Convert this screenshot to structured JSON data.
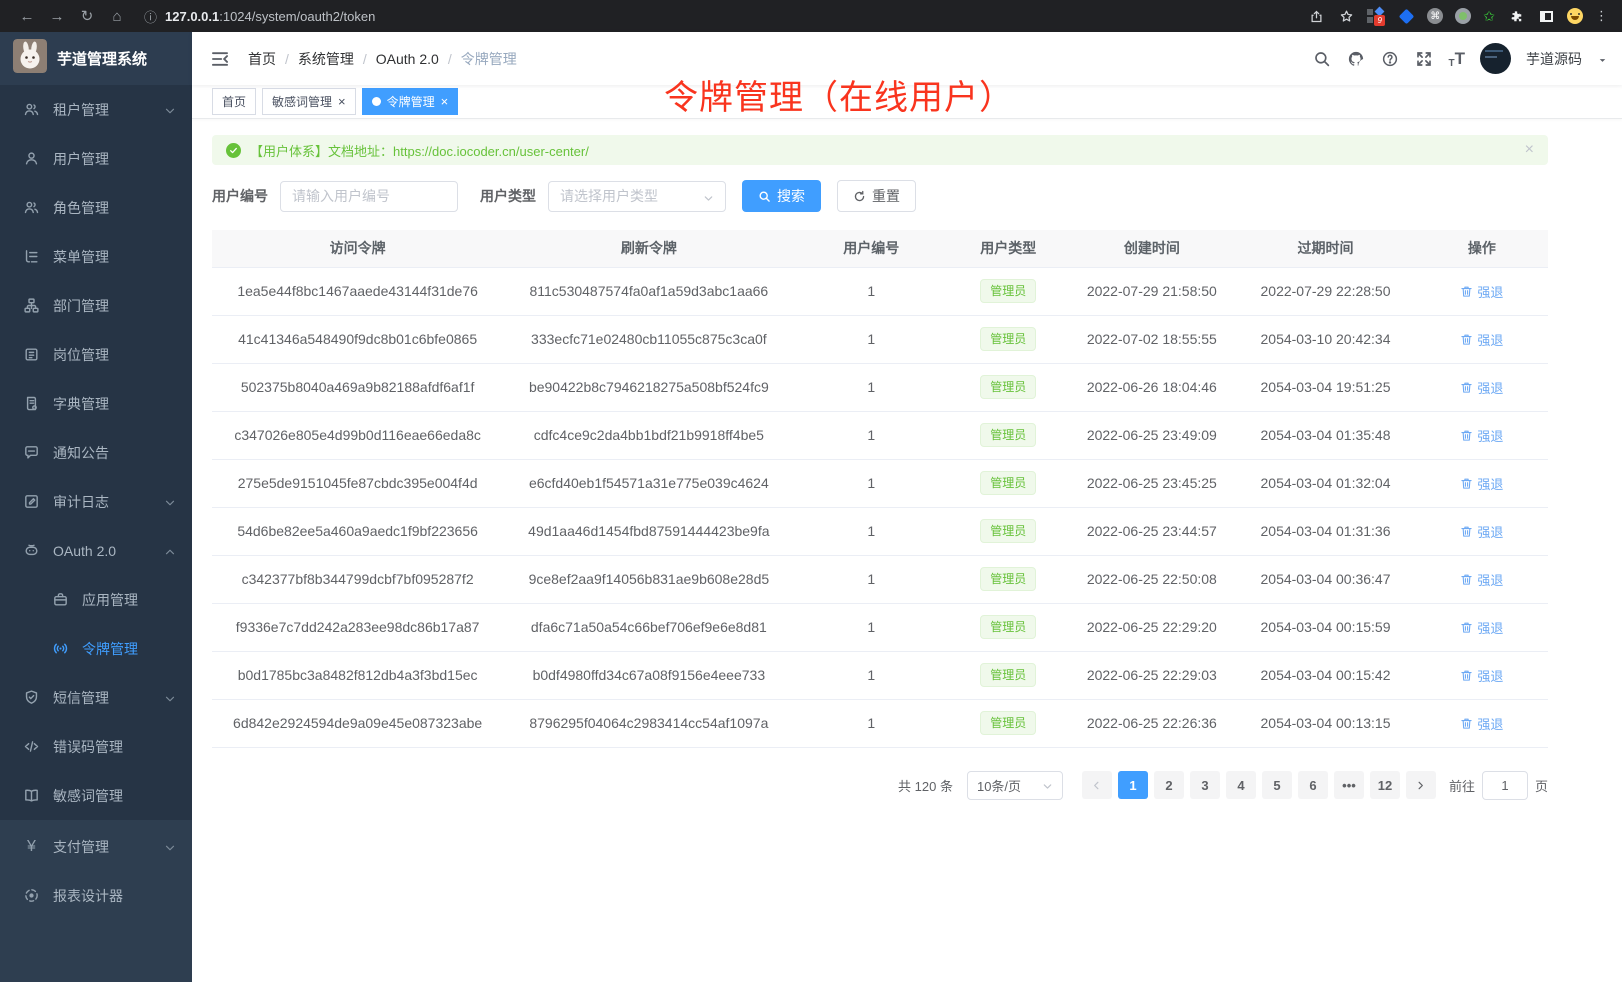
{
  "colors": {
    "primary": "#409eff",
    "success": "#67c23a",
    "annotation_red": "#f9341e",
    "action_link": "#6da9f4"
  },
  "browser": {
    "url_host": "127.0.0.1",
    "url_rest": ":1024/system/oauth2/token",
    "extension_badge": "9"
  },
  "sidebar": {
    "logo_title": "芋道管理系统",
    "menu": [
      {
        "icon": "tenant-icon",
        "label": "租户管理",
        "chevron": "down"
      },
      {
        "icon": "user-icon",
        "label": "用户管理"
      },
      {
        "icon": "role-icon",
        "label": "角色管理"
      },
      {
        "icon": "menu-icon",
        "label": "菜单管理"
      },
      {
        "icon": "dept-icon",
        "label": "部门管理"
      },
      {
        "icon": "post-icon",
        "label": "岗位管理"
      },
      {
        "icon": "dict-icon",
        "label": "字典管理"
      },
      {
        "icon": "notice-icon",
        "label": "通知公告"
      },
      {
        "icon": "audit-icon",
        "label": "审计日志",
        "chevron": "down"
      },
      {
        "icon": "oauth-icon",
        "label": "OAuth 2.0",
        "chevron": "up"
      },
      {
        "icon": "app-icon",
        "label": "应用管理",
        "indent": true
      },
      {
        "icon": "token-icon",
        "label": "令牌管理",
        "indent": true,
        "active": true
      },
      {
        "icon": "sms-icon",
        "label": "短信管理",
        "chevron": "down"
      },
      {
        "icon": "errcode-icon",
        "label": "错误码管理"
      },
      {
        "icon": "sensitive-icon",
        "label": "敏感词管理"
      }
    ],
    "bottom_menu": [
      {
        "icon": "pay-icon",
        "label": "支付管理",
        "chevron": "down"
      },
      {
        "icon": "report-icon",
        "label": "报表设计器"
      }
    ]
  },
  "header": {
    "breadcrumb": [
      "首页",
      "系统管理",
      "OAuth 2.0",
      "令牌管理"
    ],
    "username": "芋道源码"
  },
  "annotation": {
    "text": "令牌管理（在线用户）"
  },
  "tabs": [
    {
      "label": "首页",
      "closable": false,
      "active": false
    },
    {
      "label": "敏感词管理",
      "closable": true,
      "active": false
    },
    {
      "label": "令牌管理",
      "closable": true,
      "active": true
    }
  ],
  "alert": {
    "text": "【用户体系】文档地址：",
    "link": "https://doc.iocoder.cn/user-center/",
    "close": "×"
  },
  "filters": {
    "user_id_label": "用户编号",
    "user_id_placeholder": "请输入用户编号",
    "user_type_label": "用户类型",
    "user_type_placeholder": "请选择用户类型",
    "search_label": "搜索",
    "reset_label": "重置"
  },
  "table": {
    "columns": [
      "访问令牌",
      "刷新令牌",
      "用户编号",
      "用户类型",
      "创建时间",
      "过期时间",
      "操作"
    ],
    "action_label": "强退",
    "rows": [
      {
        "access_token": "1ea5e44f8bc1467aaede43144f31de76",
        "refresh_token": "811c530487574fa0af1a59d3abc1aa66",
        "user_id": "1",
        "user_type": "管理员",
        "created": "2022-07-29 21:58:50",
        "expires": "2022-07-29 22:28:50"
      },
      {
        "access_token": "41c41346a548490f9dc8b01c6bfe0865",
        "refresh_token": "333ecfc71e02480cb11055c875c3ca0f",
        "user_id": "1",
        "user_type": "管理员",
        "created": "2022-07-02 18:55:55",
        "expires": "2054-03-10 20:42:34"
      },
      {
        "access_token": "502375b8040a469a9b82188afdf6af1f",
        "refresh_token": "be90422b8c7946218275a508bf524fc9",
        "user_id": "1",
        "user_type": "管理员",
        "created": "2022-06-26 18:04:46",
        "expires": "2054-03-04 19:51:25"
      },
      {
        "access_token": "c347026e805e4d99b0d116eae66eda8c",
        "refresh_token": "cdfc4ce9c2da4bb1bdf21b9918ff4be5",
        "user_id": "1",
        "user_type": "管理员",
        "created": "2022-06-25 23:49:09",
        "expires": "2054-03-04 01:35:48"
      },
      {
        "access_token": "275e5de9151045fe87cbdc395e004f4d",
        "refresh_token": "e6cfd40eb1f54571a31e775e039c4624",
        "user_id": "1",
        "user_type": "管理员",
        "created": "2022-06-25 23:45:25",
        "expires": "2054-03-04 01:32:04"
      },
      {
        "access_token": "54d6be82ee5a460a9aedc1f9bf223656",
        "refresh_token": "49d1aa46d1454fbd87591444423be9fa",
        "user_id": "1",
        "user_type": "管理员",
        "created": "2022-06-25 23:44:57",
        "expires": "2054-03-04 01:31:36"
      },
      {
        "access_token": "c342377bf8b344799dcbf7bf095287f2",
        "refresh_token": "9ce8ef2aa9f14056b831ae9b608e28d5",
        "user_id": "1",
        "user_type": "管理员",
        "created": "2022-06-25 22:50:08",
        "expires": "2054-03-04 00:36:47"
      },
      {
        "access_token": "f9336e7c7dd242a283ee98dc86b17a87",
        "refresh_token": "dfa6c71a50a54c66bef706ef9e6e8d81",
        "user_id": "1",
        "user_type": "管理员",
        "created": "2022-06-25 22:29:20",
        "expires": "2054-03-04 00:15:59"
      },
      {
        "access_token": "b0d1785bc3a8482f812db4a3f3bd15ec",
        "refresh_token": "b0df4980ffd34c67a08f9156e4eee733",
        "user_id": "1",
        "user_type": "管理员",
        "created": "2022-06-25 22:29:03",
        "expires": "2054-03-04 00:15:42"
      },
      {
        "access_token": "6d842e2924594de9a09e45e087323abe",
        "refresh_token": "8796295f04064c2983414cc54af1097a",
        "user_id": "1",
        "user_type": "管理员",
        "created": "2022-06-25 22:26:36",
        "expires": "2054-03-04 00:13:15"
      }
    ]
  },
  "pagination": {
    "total": "共 120 条",
    "page_size": "10条/页",
    "pages": [
      "1",
      "2",
      "3",
      "4",
      "5",
      "6",
      "•••",
      "12"
    ],
    "active_page": "1",
    "goto_label": "前往",
    "goto_value": "1",
    "goto_suffix": "页"
  }
}
